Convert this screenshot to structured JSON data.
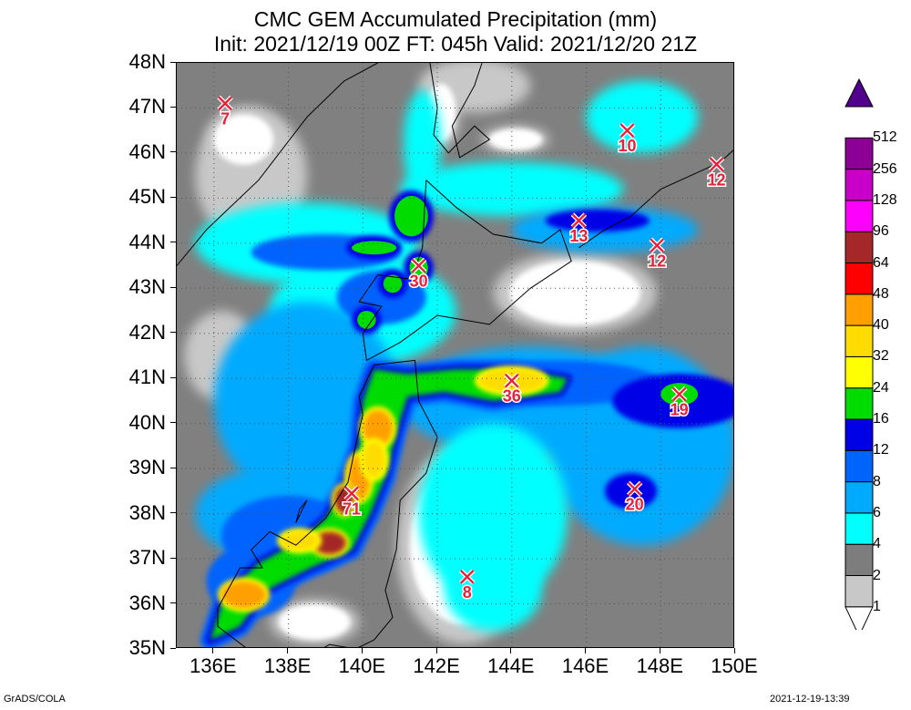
{
  "title_line1": "CMC GEM Accumulated Precipitation (mm)",
  "title_line2": "Init: 2021/12/19 00Z  FT: 045h  Valid: 2021/12/20 21Z",
  "footer_left": "GrADS/COLA",
  "footer_right": "2021-12-19-13:39",
  "map": {
    "lon_range": [
      135,
      150
    ],
    "lat_range": [
      35,
      48
    ],
    "lat_ticks": [
      "35N",
      "36N",
      "37N",
      "38N",
      "39N",
      "40N",
      "41N",
      "42N",
      "43N",
      "44N",
      "45N",
      "46N",
      "47N",
      "48N"
    ],
    "lon_ticks": [
      "136E",
      "138E",
      "140E",
      "142E",
      "144E",
      "146E",
      "148E",
      "150E"
    ],
    "grid_lats": [
      36,
      37,
      38,
      39,
      40,
      41,
      42,
      43,
      44,
      45,
      46,
      47
    ],
    "grid_lons": [
      136,
      138,
      140,
      142,
      144,
      146,
      148
    ]
  },
  "colorbar": {
    "levels": [
      "1",
      "2",
      "4",
      "6",
      "8",
      "12",
      "16",
      "24",
      "32",
      "40",
      "48",
      "64",
      "96",
      "128",
      "256",
      "512"
    ],
    "colors": [
      "#ffffff",
      "#c8c8c8",
      "#7d7d7d",
      "#00ffff",
      "#00aaff",
      "#0064ff",
      "#0000e6",
      "#00dc00",
      "#ffff00",
      "#ffdc00",
      "#ffa000",
      "#ff0000",
      "#a52828",
      "#ff00ff",
      "#c800c8",
      "#8c0096",
      "#50008c"
    ]
  },
  "max_markers": [
    {
      "label": "7",
      "lon": 136.3,
      "lat": 47.1
    },
    {
      "label": "10",
      "lon": 147.1,
      "lat": 46.5
    },
    {
      "label": "12",
      "lon": 149.5,
      "lat": 45.75
    },
    {
      "label": "13",
      "lon": 145.8,
      "lat": 44.5
    },
    {
      "label": "12",
      "lon": 147.9,
      "lat": 43.95
    },
    {
      "label": "30",
      "lon": 141.5,
      "lat": 43.5
    },
    {
      "label": "36",
      "lon": 144.0,
      "lat": 40.95
    },
    {
      "label": "19",
      "lon": 148.5,
      "lat": 40.65
    },
    {
      "label": "71",
      "lon": 139.7,
      "lat": 38.45
    },
    {
      "label": "20",
      "lon": 147.3,
      "lat": 38.55
    },
    {
      "label": "8",
      "lon": 142.8,
      "lat": 36.6
    }
  ],
  "precip_field": {
    "background": "#808080",
    "clear_areas": [
      {
        "lon": 145.7,
        "lat": 42.9,
        "rx": 2.2,
        "ry": 0.9
      },
      {
        "lon": 142.7,
        "lat": 37.3,
        "rx": 1.8,
        "ry": 2.2
      },
      {
        "lon": 138.7,
        "lat": 35.6,
        "rx": 1.2,
        "ry": 0.5
      },
      {
        "lon": 136.8,
        "lat": 46.3,
        "rx": 1.0,
        "ry": 0.7
      },
      {
        "lon": 142.1,
        "lat": 46.9,
        "rx": 0.5,
        "ry": 0.8
      },
      {
        "lon": 144.1,
        "lat": 46.3,
        "rx": 0.9,
        "ry": 0.3
      }
    ],
    "light_blobs": [
      {
        "lon": 138.5,
        "lat": 44.0,
        "rx": 3.0,
        "ry": 0.9,
        "level": 4
      },
      {
        "lon": 140.0,
        "lat": 42.5,
        "rx": 2.5,
        "ry": 1.2,
        "level": 4
      },
      {
        "lon": 138.5,
        "lat": 40.5,
        "rx": 2.5,
        "ry": 2.2,
        "level": 6
      },
      {
        "lon": 137.5,
        "lat": 38.0,
        "rx": 2.0,
        "ry": 1.0,
        "level": 6
      },
      {
        "lon": 144.5,
        "lat": 40.5,
        "rx": 3.5,
        "ry": 1.2,
        "level": 6
      },
      {
        "lon": 147.5,
        "lat": 39.5,
        "rx": 2.5,
        "ry": 2.2,
        "level": 6
      },
      {
        "lon": 143.5,
        "lat": 38.0,
        "rx": 2.0,
        "ry": 2.0,
        "level": 4
      },
      {
        "lon": 144.0,
        "lat": 45.2,
        "rx": 3.0,
        "ry": 0.6,
        "level": 4
      },
      {
        "lon": 146.5,
        "lat": 44.3,
        "rx": 2.5,
        "ry": 0.5,
        "level": 6
      },
      {
        "lon": 147.5,
        "lat": 46.8,
        "rx": 1.5,
        "ry": 0.8,
        "level": 4
      },
      {
        "lon": 143.5,
        "lat": 36.3,
        "rx": 1.3,
        "ry": 0.9,
        "level": 4
      },
      {
        "lon": 141.6,
        "lat": 46.2,
        "rx": 0.5,
        "ry": 1.2,
        "level": 4
      }
    ],
    "medium_blobs": [
      {
        "lon": 139.0,
        "lat": 43.8,
        "rx": 2.0,
        "ry": 0.4,
        "level": 8
      },
      {
        "lon": 145.2,
        "lat": 40.9,
        "rx": 2.8,
        "ry": 0.5,
        "level": 8
      },
      {
        "lon": 148.5,
        "lat": 40.5,
        "rx": 1.8,
        "ry": 0.6,
        "level": 12
      },
      {
        "lon": 146.3,
        "lat": 44.5,
        "rx": 1.4,
        "ry": 0.25,
        "level": 12
      },
      {
        "lon": 147.2,
        "lat": 38.5,
        "rx": 0.7,
        "ry": 0.4,
        "level": 12
      },
      {
        "lon": 140.5,
        "lat": 42.8,
        "rx": 1.2,
        "ry": 0.6,
        "level": 8
      },
      {
        "lon": 138.0,
        "lat": 37.5,
        "rx": 1.8,
        "ry": 0.9,
        "level": 8
      },
      {
        "lon": 137.0,
        "lat": 36.5,
        "rx": 1.2,
        "ry": 0.8,
        "level": 8
      }
    ],
    "heavy_band": [
      [
        135.9,
        35.2
      ],
      [
        136.3,
        36.2
      ],
      [
        137.2,
        36.9
      ],
      [
        138.3,
        37.4
      ],
      [
        139.0,
        37.9
      ],
      [
        139.5,
        38.6
      ],
      [
        139.9,
        39.5
      ],
      [
        140.0,
        40.5
      ],
      [
        140.3,
        41.2
      ],
      [
        141.2,
        41.1
      ],
      [
        142.5,
        41.2
      ],
      [
        144.0,
        41.2
      ],
      [
        145.5,
        41.0
      ],
      [
        145.3,
        40.7
      ],
      [
        143.5,
        40.5
      ],
      [
        142.2,
        40.7
      ],
      [
        141.2,
        40.6
      ],
      [
        140.9,
        39.8
      ],
      [
        140.6,
        38.8
      ],
      [
        140.2,
        38.0
      ],
      [
        139.7,
        37.2
      ],
      [
        138.6,
        36.8
      ],
      [
        137.4,
        36.3
      ],
      [
        136.7,
        35.5
      ]
    ],
    "heavy_blobs_green": [
      {
        "lon": 141.3,
        "lat": 44.6,
        "rx": 0.45,
        "ry": 0.45
      },
      {
        "lon": 140.3,
        "lat": 43.9,
        "rx": 0.6,
        "ry": 0.15
      },
      {
        "lon": 141.5,
        "lat": 43.45,
        "rx": 0.25,
        "ry": 0.25
      },
      {
        "lon": 140.8,
        "lat": 43.1,
        "rx": 0.25,
        "ry": 0.2
      },
      {
        "lon": 140.1,
        "lat": 42.3,
        "rx": 0.25,
        "ry": 0.2
      },
      {
        "lon": 148.5,
        "lat": 40.65,
        "rx": 0.5,
        "ry": 0.25
      }
    ],
    "hot_spots": [
      {
        "lon": 144.0,
        "lat": 40.95,
        "rx": 0.9,
        "ry": 0.25,
        "level": 32
      },
      {
        "lon": 140.4,
        "lat": 39.9,
        "rx": 0.4,
        "ry": 0.4,
        "level": 40
      },
      {
        "lon": 139.9,
        "lat": 38.8,
        "rx": 0.3,
        "ry": 0.5,
        "level": 40
      },
      {
        "lon": 139.5,
        "lat": 38.3,
        "rx": 0.25,
        "ry": 0.3,
        "level": 64
      },
      {
        "lon": 139.1,
        "lat": 37.35,
        "rx": 0.45,
        "ry": 0.25,
        "level": 64
      },
      {
        "lon": 138.3,
        "lat": 37.4,
        "rx": 0.5,
        "ry": 0.2,
        "level": 32
      },
      {
        "lon": 136.8,
        "lat": 36.2,
        "rx": 0.6,
        "ry": 0.3,
        "level": 40
      },
      {
        "lon": 140.3,
        "lat": 39.2,
        "rx": 0.3,
        "ry": 0.4,
        "level": 32
      }
    ]
  }
}
